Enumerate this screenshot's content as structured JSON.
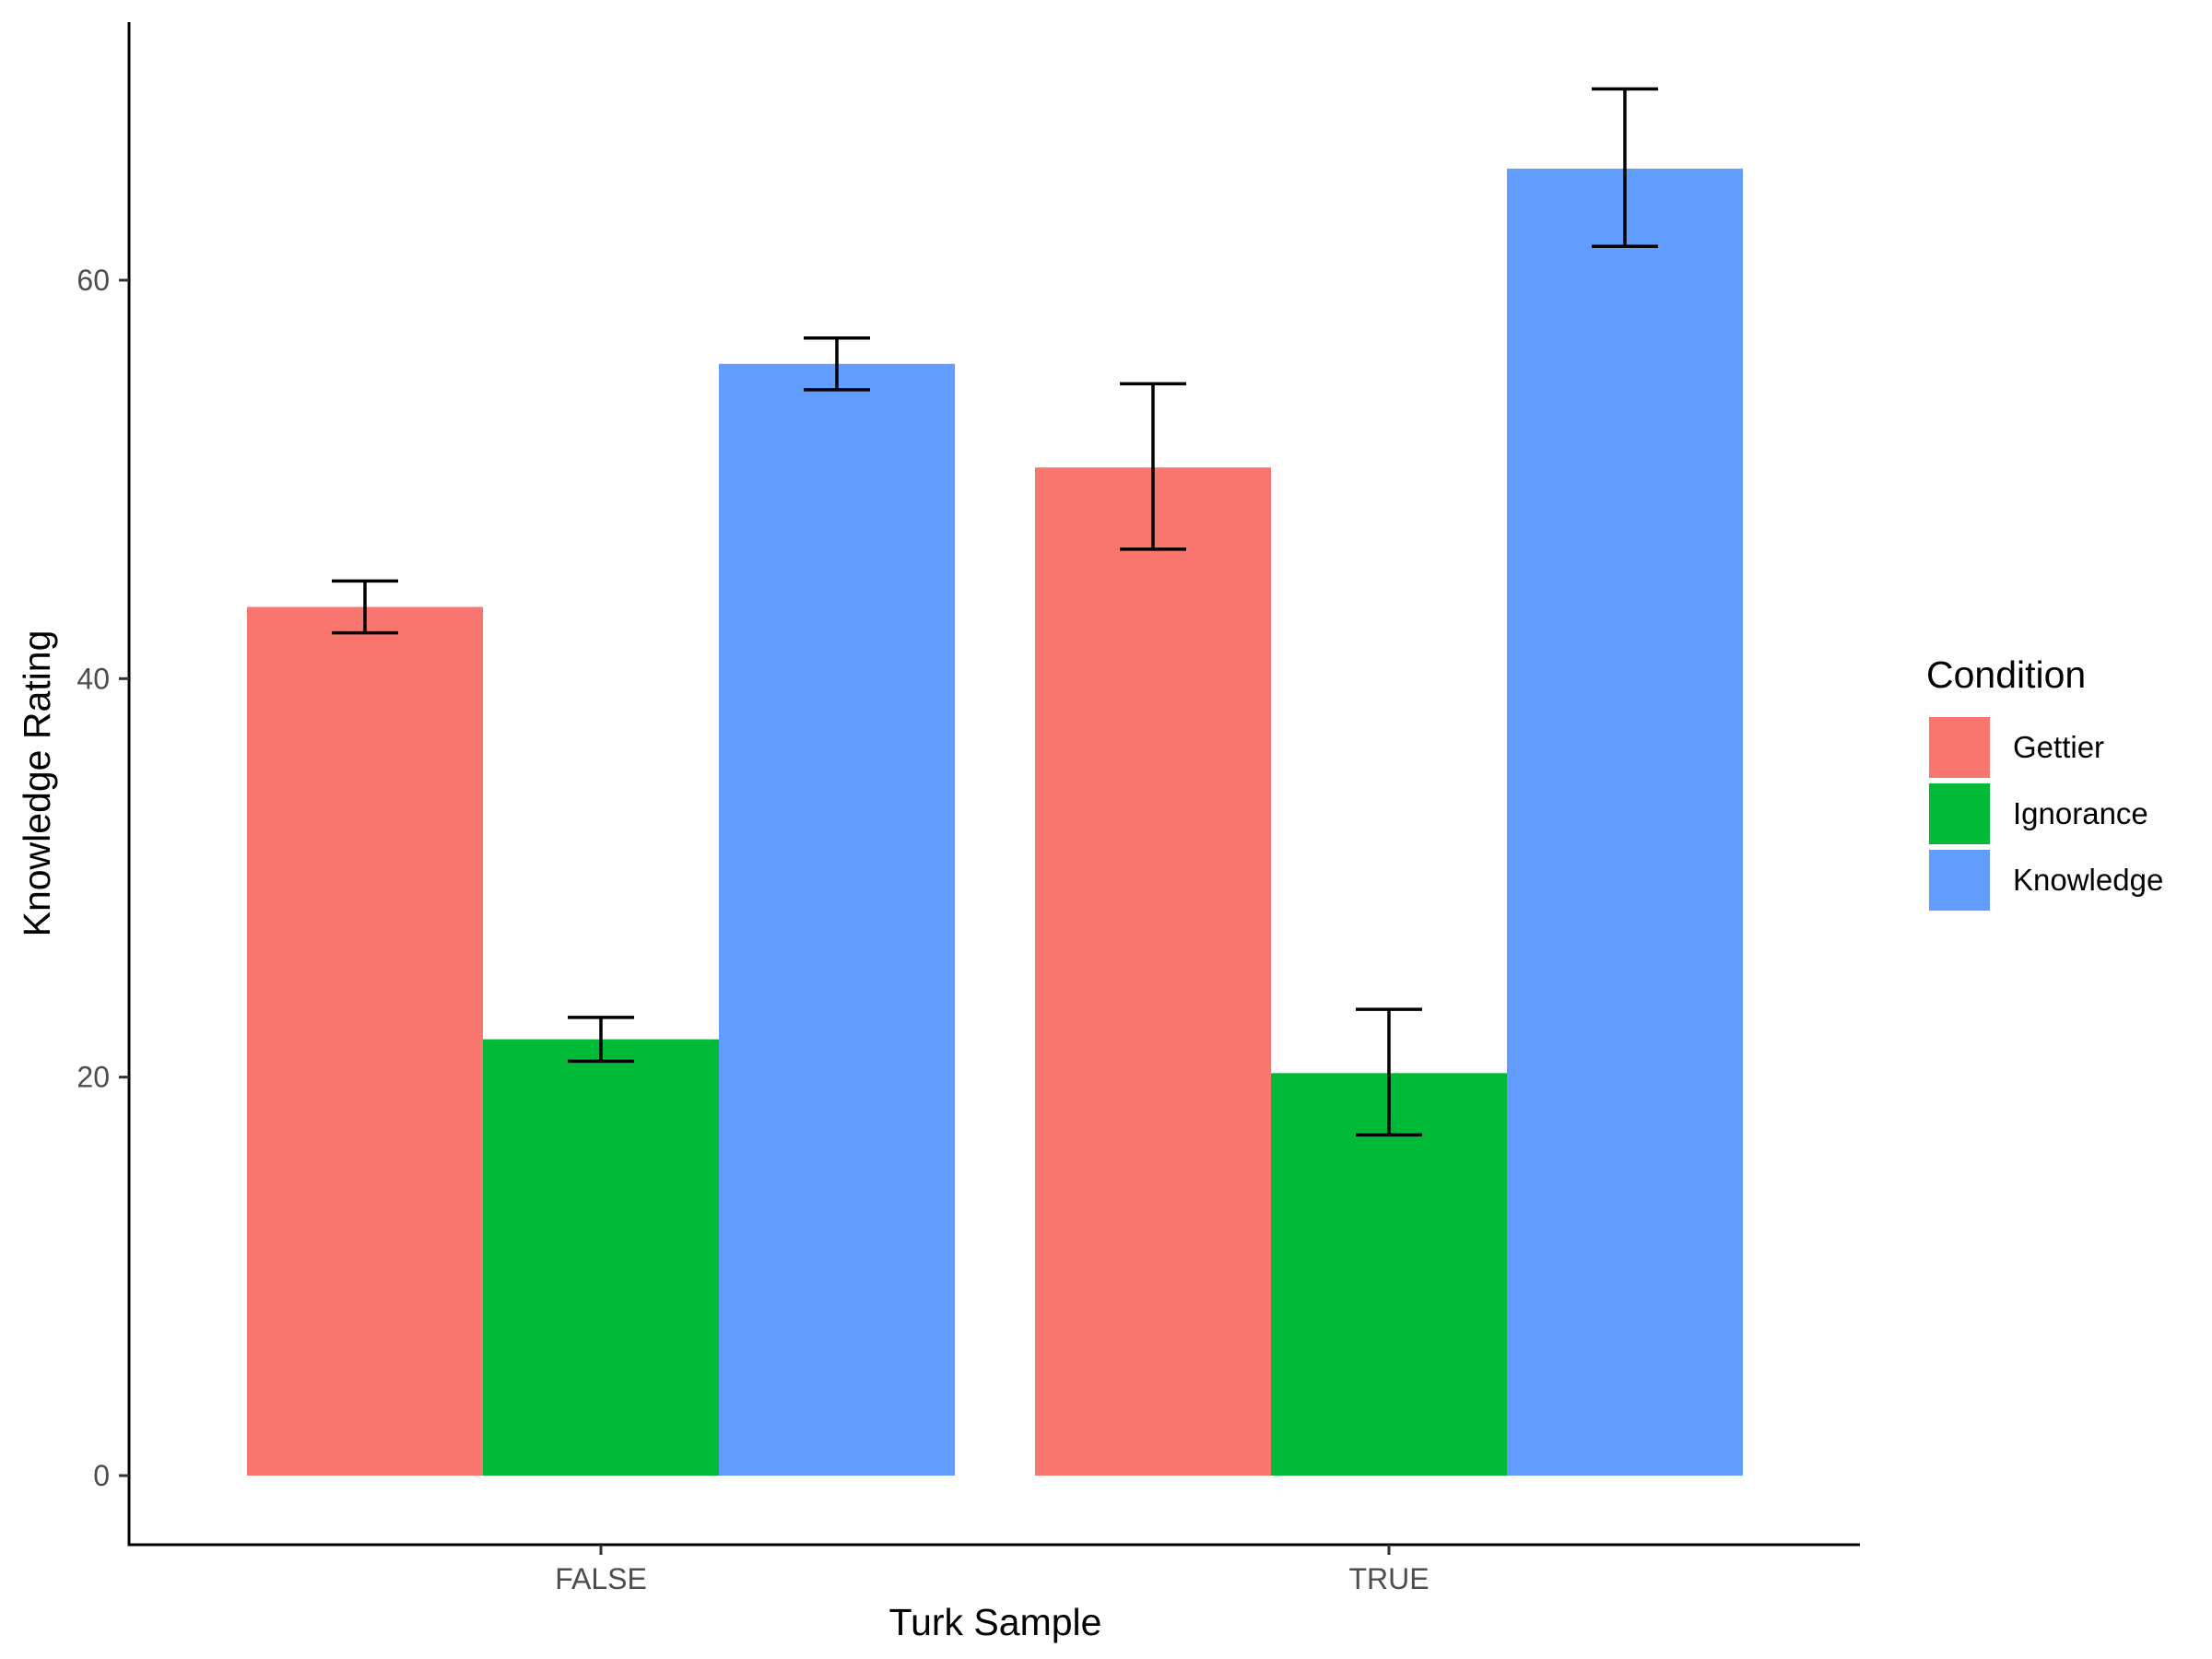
{
  "chart_data": {
    "type": "bar",
    "title": "",
    "xlabel": "Turk Sample",
    "ylabel": "Knowledge Rating",
    "categories": [
      "FALSE",
      "TRUE"
    ],
    "ylim": [
      -3.5,
      73
    ],
    "yticks": [
      0,
      20,
      40,
      60
    ],
    "grid": false,
    "legend": {
      "title": "Condition",
      "placement": "right"
    },
    "series": [
      {
        "name": "Gettier",
        "color": "#F8766D",
        "values": [
          43.6,
          50.6
        ],
        "err_low": [
          42.3,
          46.5
        ],
        "err_high": [
          44.9,
          54.8
        ]
      },
      {
        "name": "Ignorance",
        "color": "#00BA38",
        "values": [
          21.9,
          20.2
        ],
        "err_low": [
          20.8,
          17.1
        ],
        "err_high": [
          23.0,
          23.4
        ]
      },
      {
        "name": "Knowledge",
        "color": "#619CFF",
        "values": [
          55.8,
          65.6
        ],
        "err_low": [
          54.5,
          61.7
        ],
        "err_high": [
          57.1,
          69.6
        ]
      }
    ]
  }
}
